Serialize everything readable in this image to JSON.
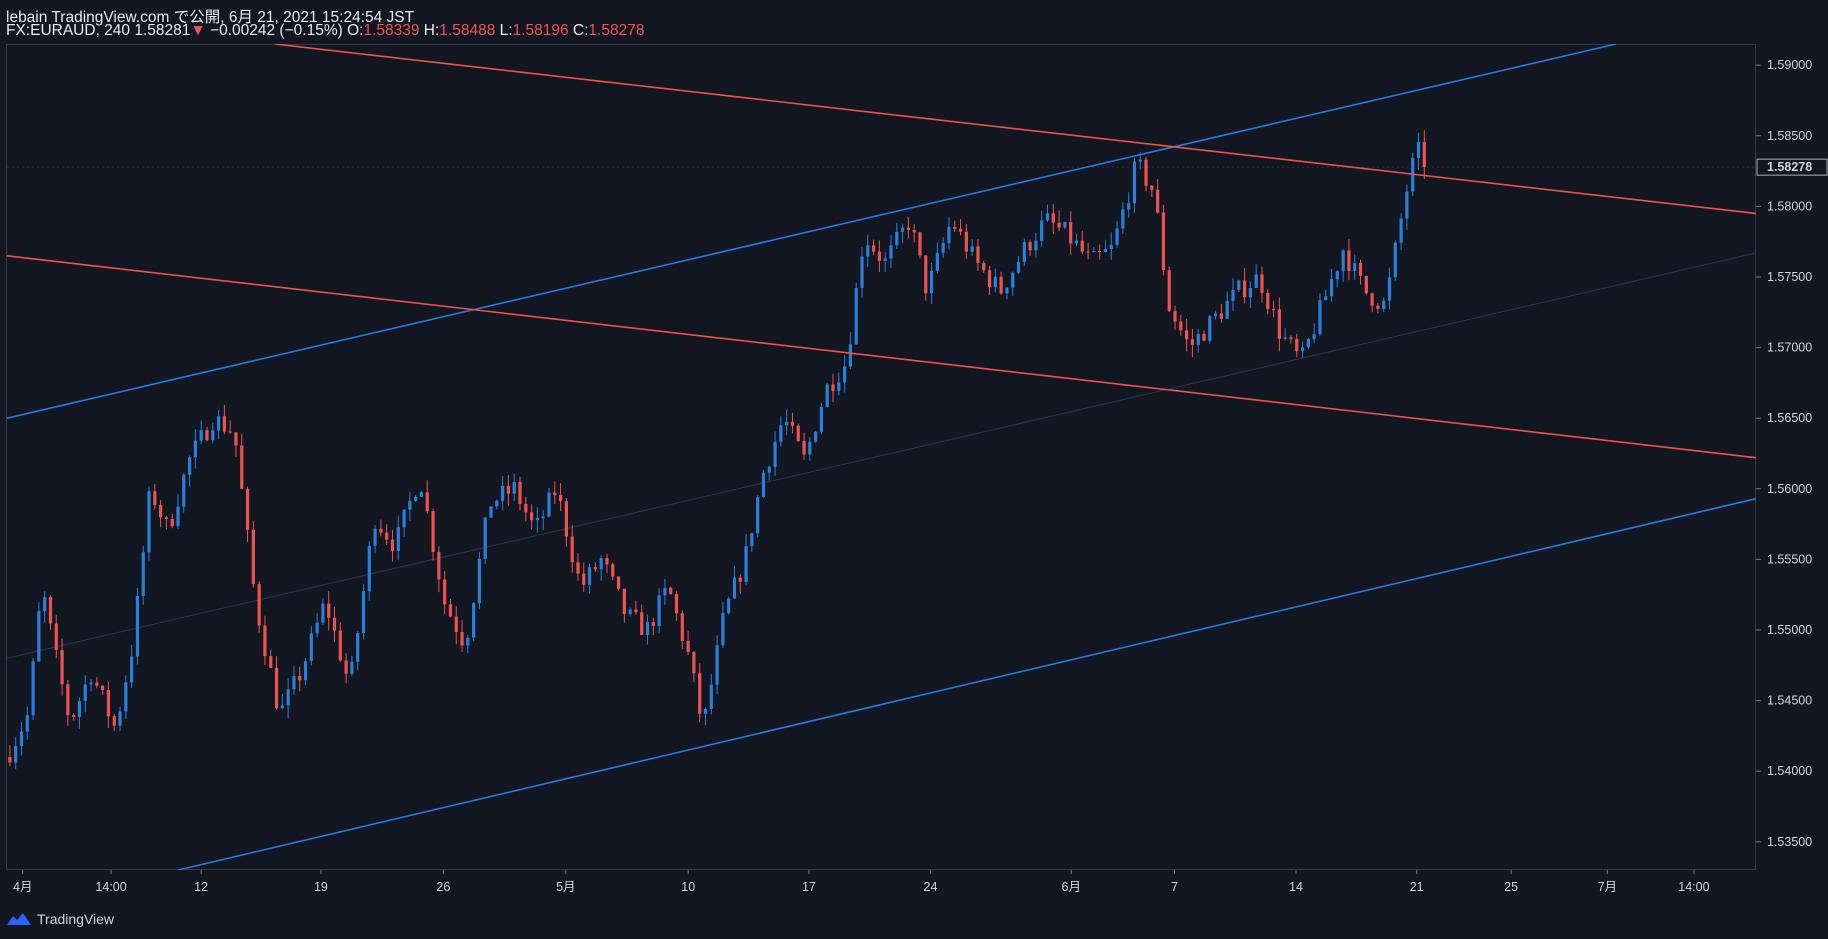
{
  "header": {
    "line1": "lebain TradingView.com で公開, 6月 21, 2021 15:24:54 JST",
    "symbol": "FX:EURAUD, 240",
    "last": "1.58281",
    "change_arrow": "▼",
    "change": "−0.00242 (−0.15%)",
    "o_label": "O:",
    "o": "1.58339",
    "h_label": "H:",
    "h": "1.58488",
    "l_label": "L:",
    "l": "1.58196",
    "c_label": "C:",
    "c": "1.58278"
  },
  "footer": {
    "brand": "TradingView"
  },
  "colors": {
    "background": "#131722",
    "up": "#2a7fdc",
    "down": "#ef5350",
    "channel_blue": "#2979e0",
    "channel_red": "#ef5350"
  },
  "chart_data": {
    "type": "candlestick",
    "symbol": "FX:EURAUD",
    "interval": "240",
    "y_axis": {
      "ticks": [
        "1.59000",
        "1.58500",
        "1.58000",
        "1.57500",
        "1.57000",
        "1.56500",
        "1.56000",
        "1.55500",
        "1.55000",
        "1.54500",
        "1.54000",
        "1.53500"
      ],
      "range": [
        1.533,
        1.5915
      ],
      "last_price_label": "1.58278",
      "position": "right"
    },
    "x_axis": {
      "ticks": [
        "4月",
        "14:00",
        "12",
        "19",
        "26",
        "5月",
        "10",
        "17",
        "24",
        "6月",
        "7",
        "14",
        "21",
        "25",
        "7月",
        "14:00"
      ]
    },
    "grid": false,
    "close_path": [
      [
        0,
        1.541
      ],
      [
        0.012,
        1.544
      ],
      [
        0.02,
        1.553
      ],
      [
        0.028,
        1.548
      ],
      [
        0.036,
        1.5435
      ],
      [
        0.048,
        1.547
      ],
      [
        0.062,
        1.543
      ],
      [
        0.072,
        1.549
      ],
      [
        0.082,
        1.56
      ],
      [
        0.092,
        1.557
      ],
      [
        0.104,
        1.562
      ],
      [
        0.118,
        1.565
      ],
      [
        0.13,
        1.564
      ],
      [
        0.142,
        1.552
      ],
      [
        0.156,
        1.544
      ],
      [
        0.168,
        1.547
      ],
      [
        0.182,
        1.552
      ],
      [
        0.196,
        1.546
      ],
      [
        0.21,
        1.558
      ],
      [
        0.222,
        1.556
      ],
      [
        0.236,
        1.561
      ],
      [
        0.25,
        1.552
      ],
      [
        0.262,
        1.549
      ],
      [
        0.276,
        1.559
      ],
      [
        0.29,
        1.56
      ],
      [
        0.302,
        1.557
      ],
      [
        0.314,
        1.56
      ],
      [
        0.328,
        1.553
      ],
      [
        0.34,
        1.555
      ],
      [
        0.354,
        1.551
      ],
      [
        0.366,
        1.55
      ],
      [
        0.378,
        1.553
      ],
      [
        0.39,
        1.548
      ],
      [
        0.398,
        1.543
      ],
      [
        0.41,
        1.551
      ],
      [
        0.422,
        1.555
      ],
      [
        0.432,
        1.561
      ],
      [
        0.444,
        1.565
      ],
      [
        0.456,
        1.562
      ],
      [
        0.468,
        1.567
      ],
      [
        0.48,
        1.569
      ],
      [
        0.49,
        1.578
      ],
      [
        0.502,
        1.576
      ],
      [
        0.516,
        1.579
      ],
      [
        0.526,
        1.574
      ],
      [
        0.54,
        1.579
      ],
      [
        0.554,
        1.576
      ],
      [
        0.568,
        1.574
      ],
      [
        0.582,
        1.577
      ],
      [
        0.594,
        1.579
      ],
      [
        0.606,
        1.578
      ],
      [
        0.62,
        1.576
      ],
      [
        0.632,
        1.577
      ],
      [
        0.646,
        1.583
      ],
      [
        0.656,
        1.581
      ],
      [
        0.664,
        1.573
      ],
      [
        0.676,
        1.57
      ],
      [
        0.69,
        1.572
      ],
      [
        0.704,
        1.574
      ],
      [
        0.716,
        1.575
      ],
      [
        0.728,
        1.571
      ],
      [
        0.74,
        1.569
      ],
      [
        0.752,
        1.573
      ],
      [
        0.764,
        1.577
      ],
      [
        0.776,
        1.574
      ],
      [
        0.788,
        1.573
      ],
      [
        0.8,
        1.581
      ],
      [
        0.806,
        1.584
      ],
      [
        0.812,
        1.5828
      ]
    ],
    "trendlines": [
      {
        "color": "#2979e0",
        "from": [
          0.0,
          1.565
        ],
        "to": [
          0.92,
          1.5915
        ]
      },
      {
        "color": "#2979e0",
        "from": [
          0.098,
          1.533
        ],
        "to": [
          1.0,
          1.5593
        ]
      },
      {
        "color": "#ef5350",
        "from": [
          0.153,
          1.5915
        ],
        "to": [
          1.0,
          1.5795
        ]
      },
      {
        "color": "#ef5350",
        "from": [
          0.0,
          1.5765
        ],
        "to": [
          1.0,
          1.5622
        ]
      }
    ],
    "faint_trendline": {
      "color": "#2a3550",
      "from": [
        0.0,
        1.548
      ],
      "to": [
        1.0,
        1.5767
      ]
    }
  }
}
